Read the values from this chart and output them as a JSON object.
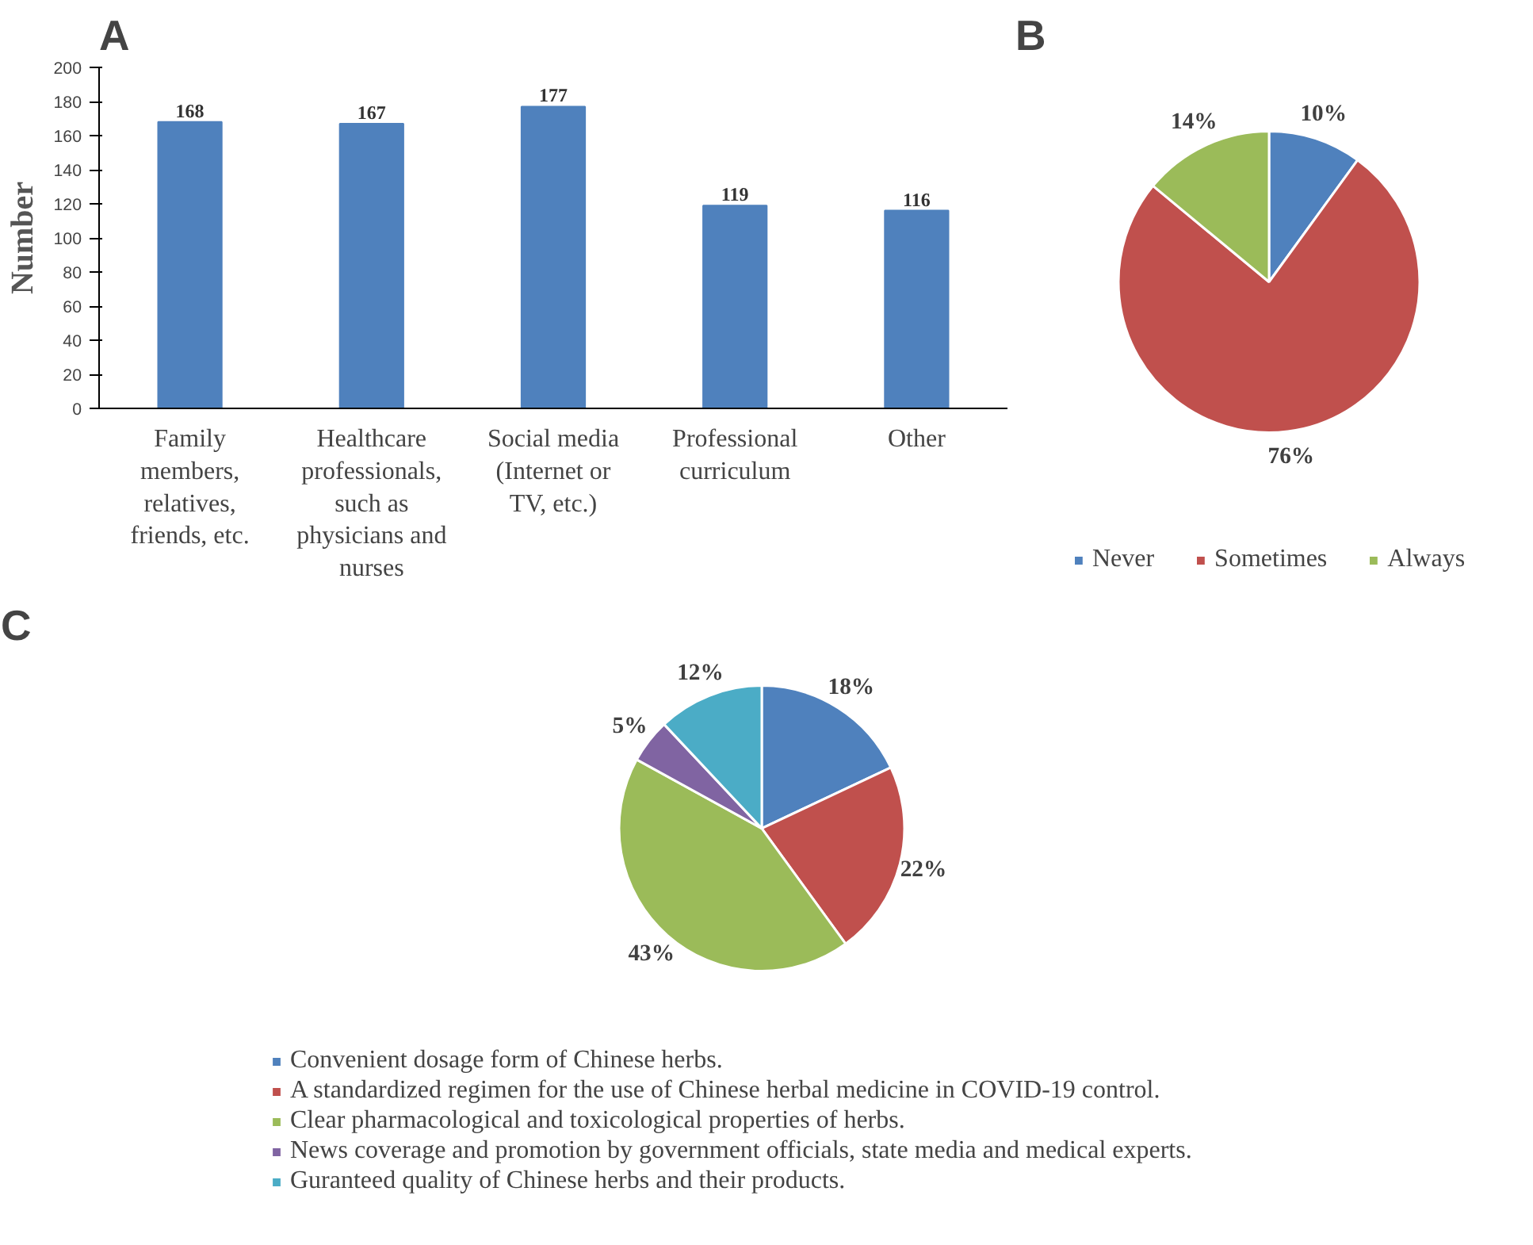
{
  "chart_data": [
    {
      "type": "bar",
      "title": "A",
      "ylabel": "Number",
      "categories": [
        "Family members, relatives, friends, etc.",
        "Healthcare professionals, such as physicians and nurses",
        "Social media (Internet or TV, etc.)",
        "Professional curriculum",
        "Other"
      ],
      "values": [
        168,
        167,
        177,
        119,
        116
      ],
      "color": "#4f81bd",
      "ylim": [
        0,
        200
      ],
      "yticks": [
        0,
        20,
        40,
        60,
        80,
        100,
        120,
        140,
        160,
        180,
        200
      ],
      "data_labels": true
    },
    {
      "type": "pie",
      "title": "B",
      "categories": [
        "Never",
        "Sometimes",
        "Always"
      ],
      "values": [
        10,
        76,
        14
      ],
      "colors": [
        "#4f81bd",
        "#c0504d",
        "#9bbb59"
      ],
      "value_labels": [
        "10%",
        "76%",
        "14%"
      ],
      "legend": "bottom"
    },
    {
      "type": "pie",
      "title": "C",
      "categories": [
        "Convenient dosage form of Chinese herbs.",
        "A standardized regimen for the use of Chinese herbal medicine in COVID-19 control.",
        "Clear pharmacological and toxicological properties of herbs.",
        "News coverage and promotion by government officials, state media and medical experts.",
        "Guranteed quality of Chinese herbs and their products."
      ],
      "values": [
        18,
        22,
        43,
        5,
        12
      ],
      "colors": [
        "#4f81bd",
        "#c0504d",
        "#9bbb59",
        "#8064a2",
        "#4bacc6"
      ],
      "value_labels": [
        "18%",
        "22%",
        "43%",
        "5%",
        "12%"
      ],
      "legend": "bottom"
    }
  ]
}
